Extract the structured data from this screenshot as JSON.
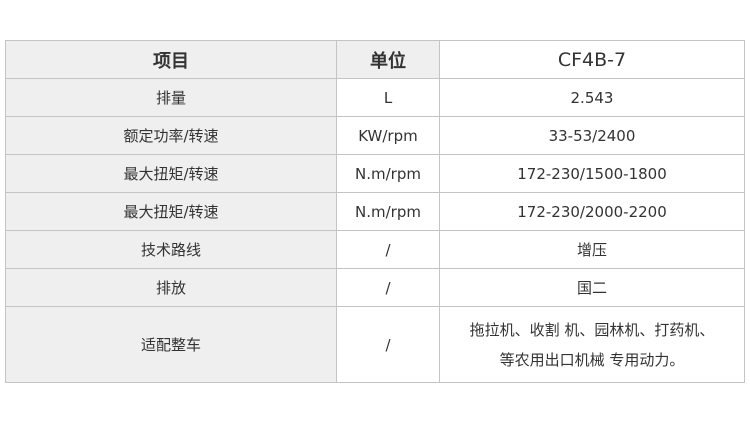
{
  "header": {
    "item": "项目",
    "unit": "单位",
    "model": "CF4B-7"
  },
  "rows": [
    {
      "item": "排量",
      "unit": "L",
      "value": "2.543"
    },
    {
      "item": "额定功率/转速",
      "unit": "KW/rpm",
      "value": "33-53/2400"
    },
    {
      "item": "最大扭矩/转速",
      "unit": "N.m/rpm",
      "value": "172-230/1500-1800"
    },
    {
      "item": "最大扭矩/转速",
      "unit": "N.m/rpm",
      "value": "172-230/2000-2200"
    },
    {
      "item": "技术路线",
      "unit": "/",
      "value": "增压"
    },
    {
      "item": "排放",
      "unit": "/",
      "value": "国二"
    }
  ],
  "last_row": {
    "item": "适配整车",
    "unit": "/",
    "lines": [
      "拖拉机、收割 机、园林机、打药机、",
      "等农用出口机械 专用动力。"
    ]
  }
}
